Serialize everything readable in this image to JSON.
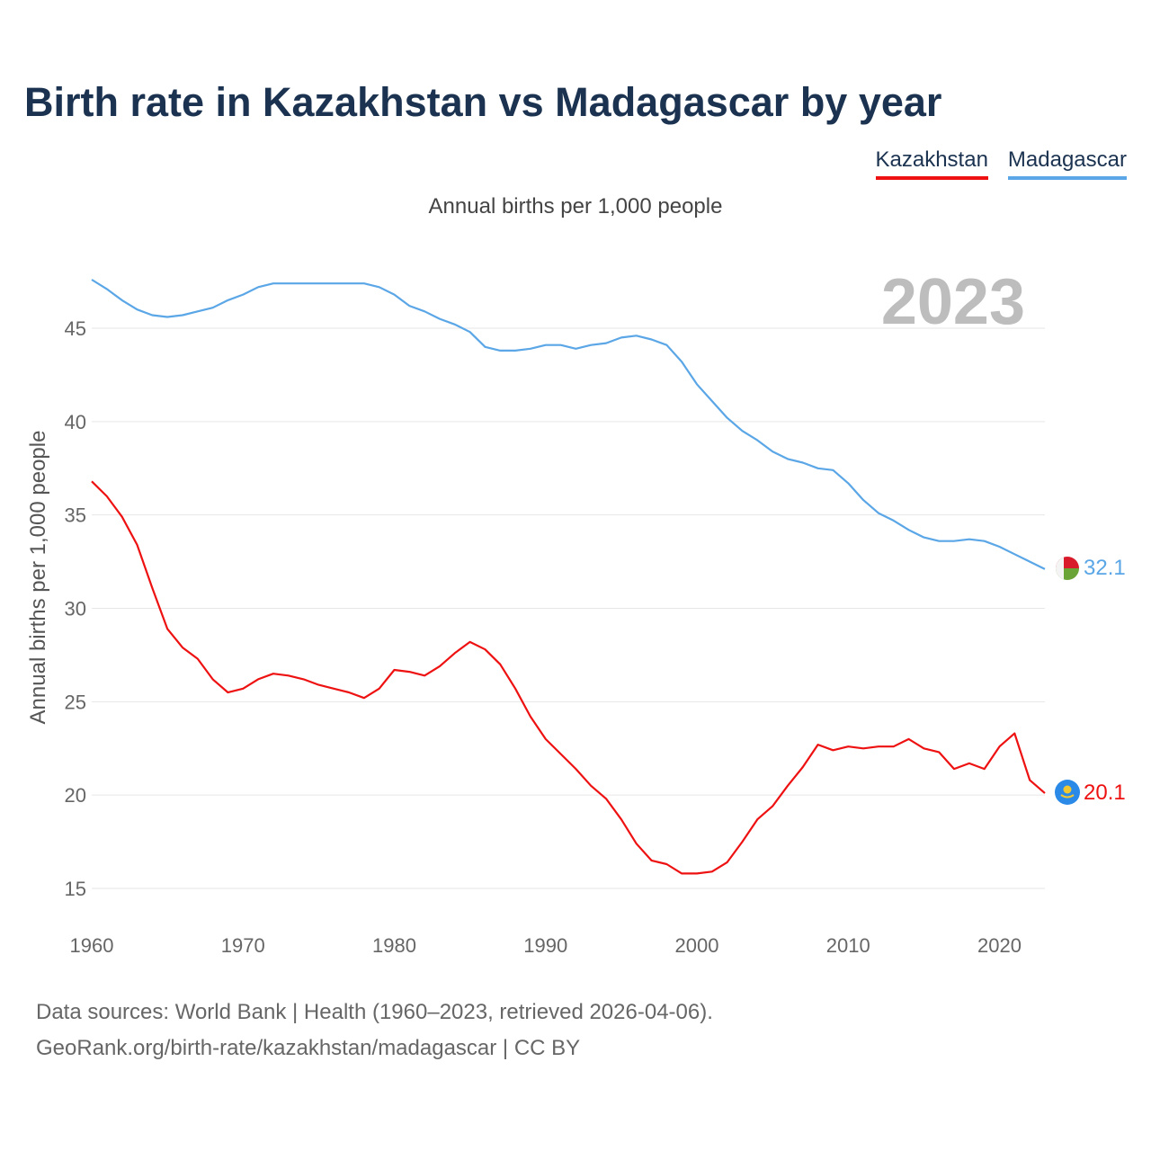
{
  "title": "Birth rate in Kazakhstan vs Madagascar by year",
  "subtitle": "Annual births per 1,000 people",
  "sources": {
    "line1": "Data sources: World Bank | Health (1960–2023, retrieved 2026-04-06).",
    "line2": "GeoRank.org/birth-rate/kazakhstan/madagascar | CC BY"
  },
  "legend": [
    {
      "name": "Kazakhstan",
      "color": "#ee1111"
    },
    {
      "name": "Madagascar",
      "color": "#5aa6e6"
    }
  ],
  "chart_data": {
    "type": "line",
    "title": "Birth rate in Kazakhstan vs Madagascar by year",
    "xlabel": "",
    "ylabel": "Annual births per 1,000 people",
    "xlim": [
      1960,
      2023
    ],
    "ylim": [
      14,
      48
    ],
    "yticks": [
      15,
      20,
      25,
      30,
      35,
      40,
      45
    ],
    "xticks": [
      1960,
      1970,
      1980,
      1990,
      2000,
      2010,
      2020
    ],
    "year_label": "2023",
    "x": [
      1960,
      1961,
      1962,
      1963,
      1964,
      1965,
      1966,
      1967,
      1968,
      1969,
      1970,
      1971,
      1972,
      1973,
      1974,
      1975,
      1976,
      1977,
      1978,
      1979,
      1980,
      1981,
      1982,
      1983,
      1984,
      1985,
      1986,
      1987,
      1988,
      1989,
      1990,
      1991,
      1992,
      1993,
      1994,
      1995,
      1996,
      1997,
      1998,
      1999,
      2000,
      2001,
      2002,
      2003,
      2004,
      2005,
      2006,
      2007,
      2008,
      2009,
      2010,
      2011,
      2012,
      2013,
      2014,
      2015,
      2016,
      2017,
      2018,
      2019,
      2020,
      2021,
      2022,
      2023
    ],
    "series": [
      {
        "name": "Kazakhstan",
        "color": "#ee1111",
        "end_label": "20.1",
        "values": [
          36.8,
          36.0,
          34.9,
          33.4,
          31.1,
          28.9,
          27.9,
          27.3,
          26.2,
          25.5,
          25.7,
          26.2,
          26.5,
          26.4,
          26.2,
          25.9,
          25.7,
          25.5,
          25.2,
          25.7,
          26.7,
          26.6,
          26.4,
          26.9,
          27.6,
          28.2,
          27.8,
          27.0,
          25.7,
          24.2,
          23.0,
          22.2,
          21.4,
          20.5,
          19.8,
          18.7,
          17.4,
          16.5,
          16.3,
          15.8,
          15.8,
          15.9,
          16.4,
          17.5,
          18.7,
          19.4,
          20.5,
          21.5,
          22.7,
          22.4,
          22.6,
          22.5,
          22.6,
          22.6,
          23.0,
          22.5,
          22.3,
          21.4,
          21.7,
          21.4,
          22.6,
          23.3,
          20.8,
          20.1
        ]
      },
      {
        "name": "Madagascar",
        "color": "#5aa6e6",
        "end_label": "32.1",
        "values": [
          47.6,
          47.1,
          46.5,
          46.0,
          45.7,
          45.6,
          45.7,
          45.9,
          46.1,
          46.5,
          46.8,
          47.2,
          47.4,
          47.4,
          47.4,
          47.4,
          47.4,
          47.4,
          47.4,
          47.2,
          46.8,
          46.2,
          45.9,
          45.5,
          45.2,
          44.8,
          44.0,
          43.8,
          43.8,
          43.9,
          44.1,
          44.1,
          43.9,
          44.1,
          44.2,
          44.5,
          44.6,
          44.4,
          44.1,
          43.2,
          42.0,
          41.1,
          40.2,
          39.5,
          39.0,
          38.4,
          38.0,
          37.8,
          37.5,
          37.4,
          36.7,
          35.8,
          35.1,
          34.7,
          34.2,
          33.8,
          33.6,
          33.6,
          33.7,
          33.6,
          33.3,
          32.9,
          32.5,
          32.1
        ]
      }
    ]
  }
}
